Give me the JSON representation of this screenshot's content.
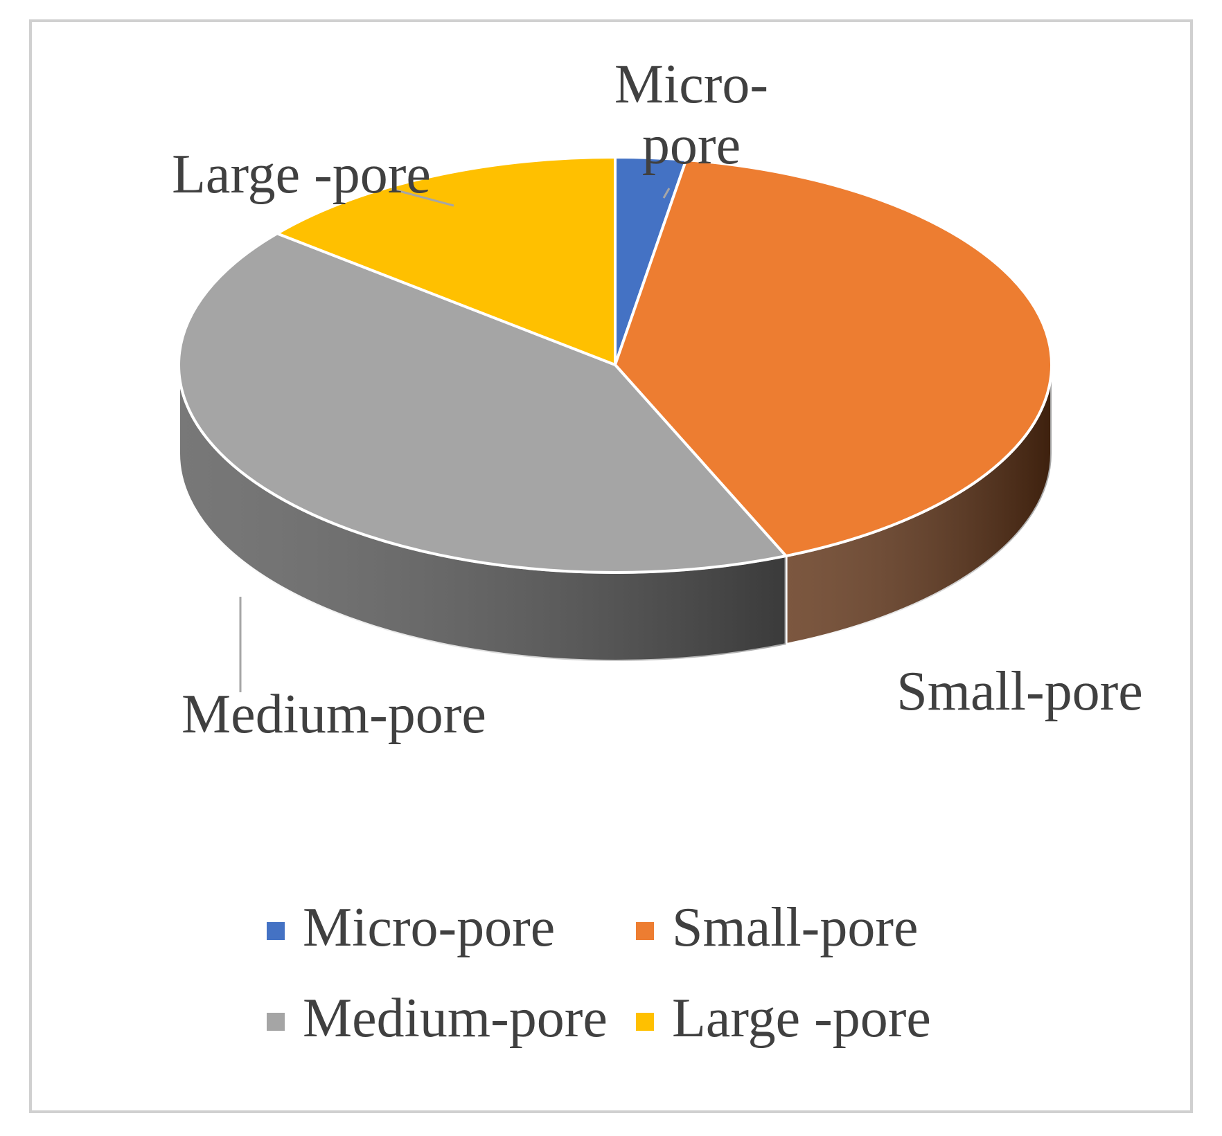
{
  "chart_data": {
    "type": "pie",
    "title": "",
    "categories": [
      "Micro-pore",
      "Small-pore",
      "Medium-pore",
      "Large -pore"
    ],
    "values": [
      2.6,
      41.0,
      42.3,
      14.1
    ],
    "colors": [
      "#4472C4",
      "#ED7D31",
      "#A5A5A5",
      "#FFC000"
    ],
    "side_colors": [
      "#2C4D8A",
      "#5F3215",
      "#5A5A5A",
      "#A07A00"
    ],
    "start_angle_deg": 0,
    "direction": "clockwise",
    "view": "3d-tilted",
    "data_labels": [
      "Micro-\npore",
      "Small-pore",
      "Medium-pore",
      "Large -pore"
    ],
    "legend": {
      "position": "bottom",
      "entries": [
        "Micro-pore",
        "Small-pore",
        "Medium-pore",
        "Large -pore"
      ]
    }
  }
}
